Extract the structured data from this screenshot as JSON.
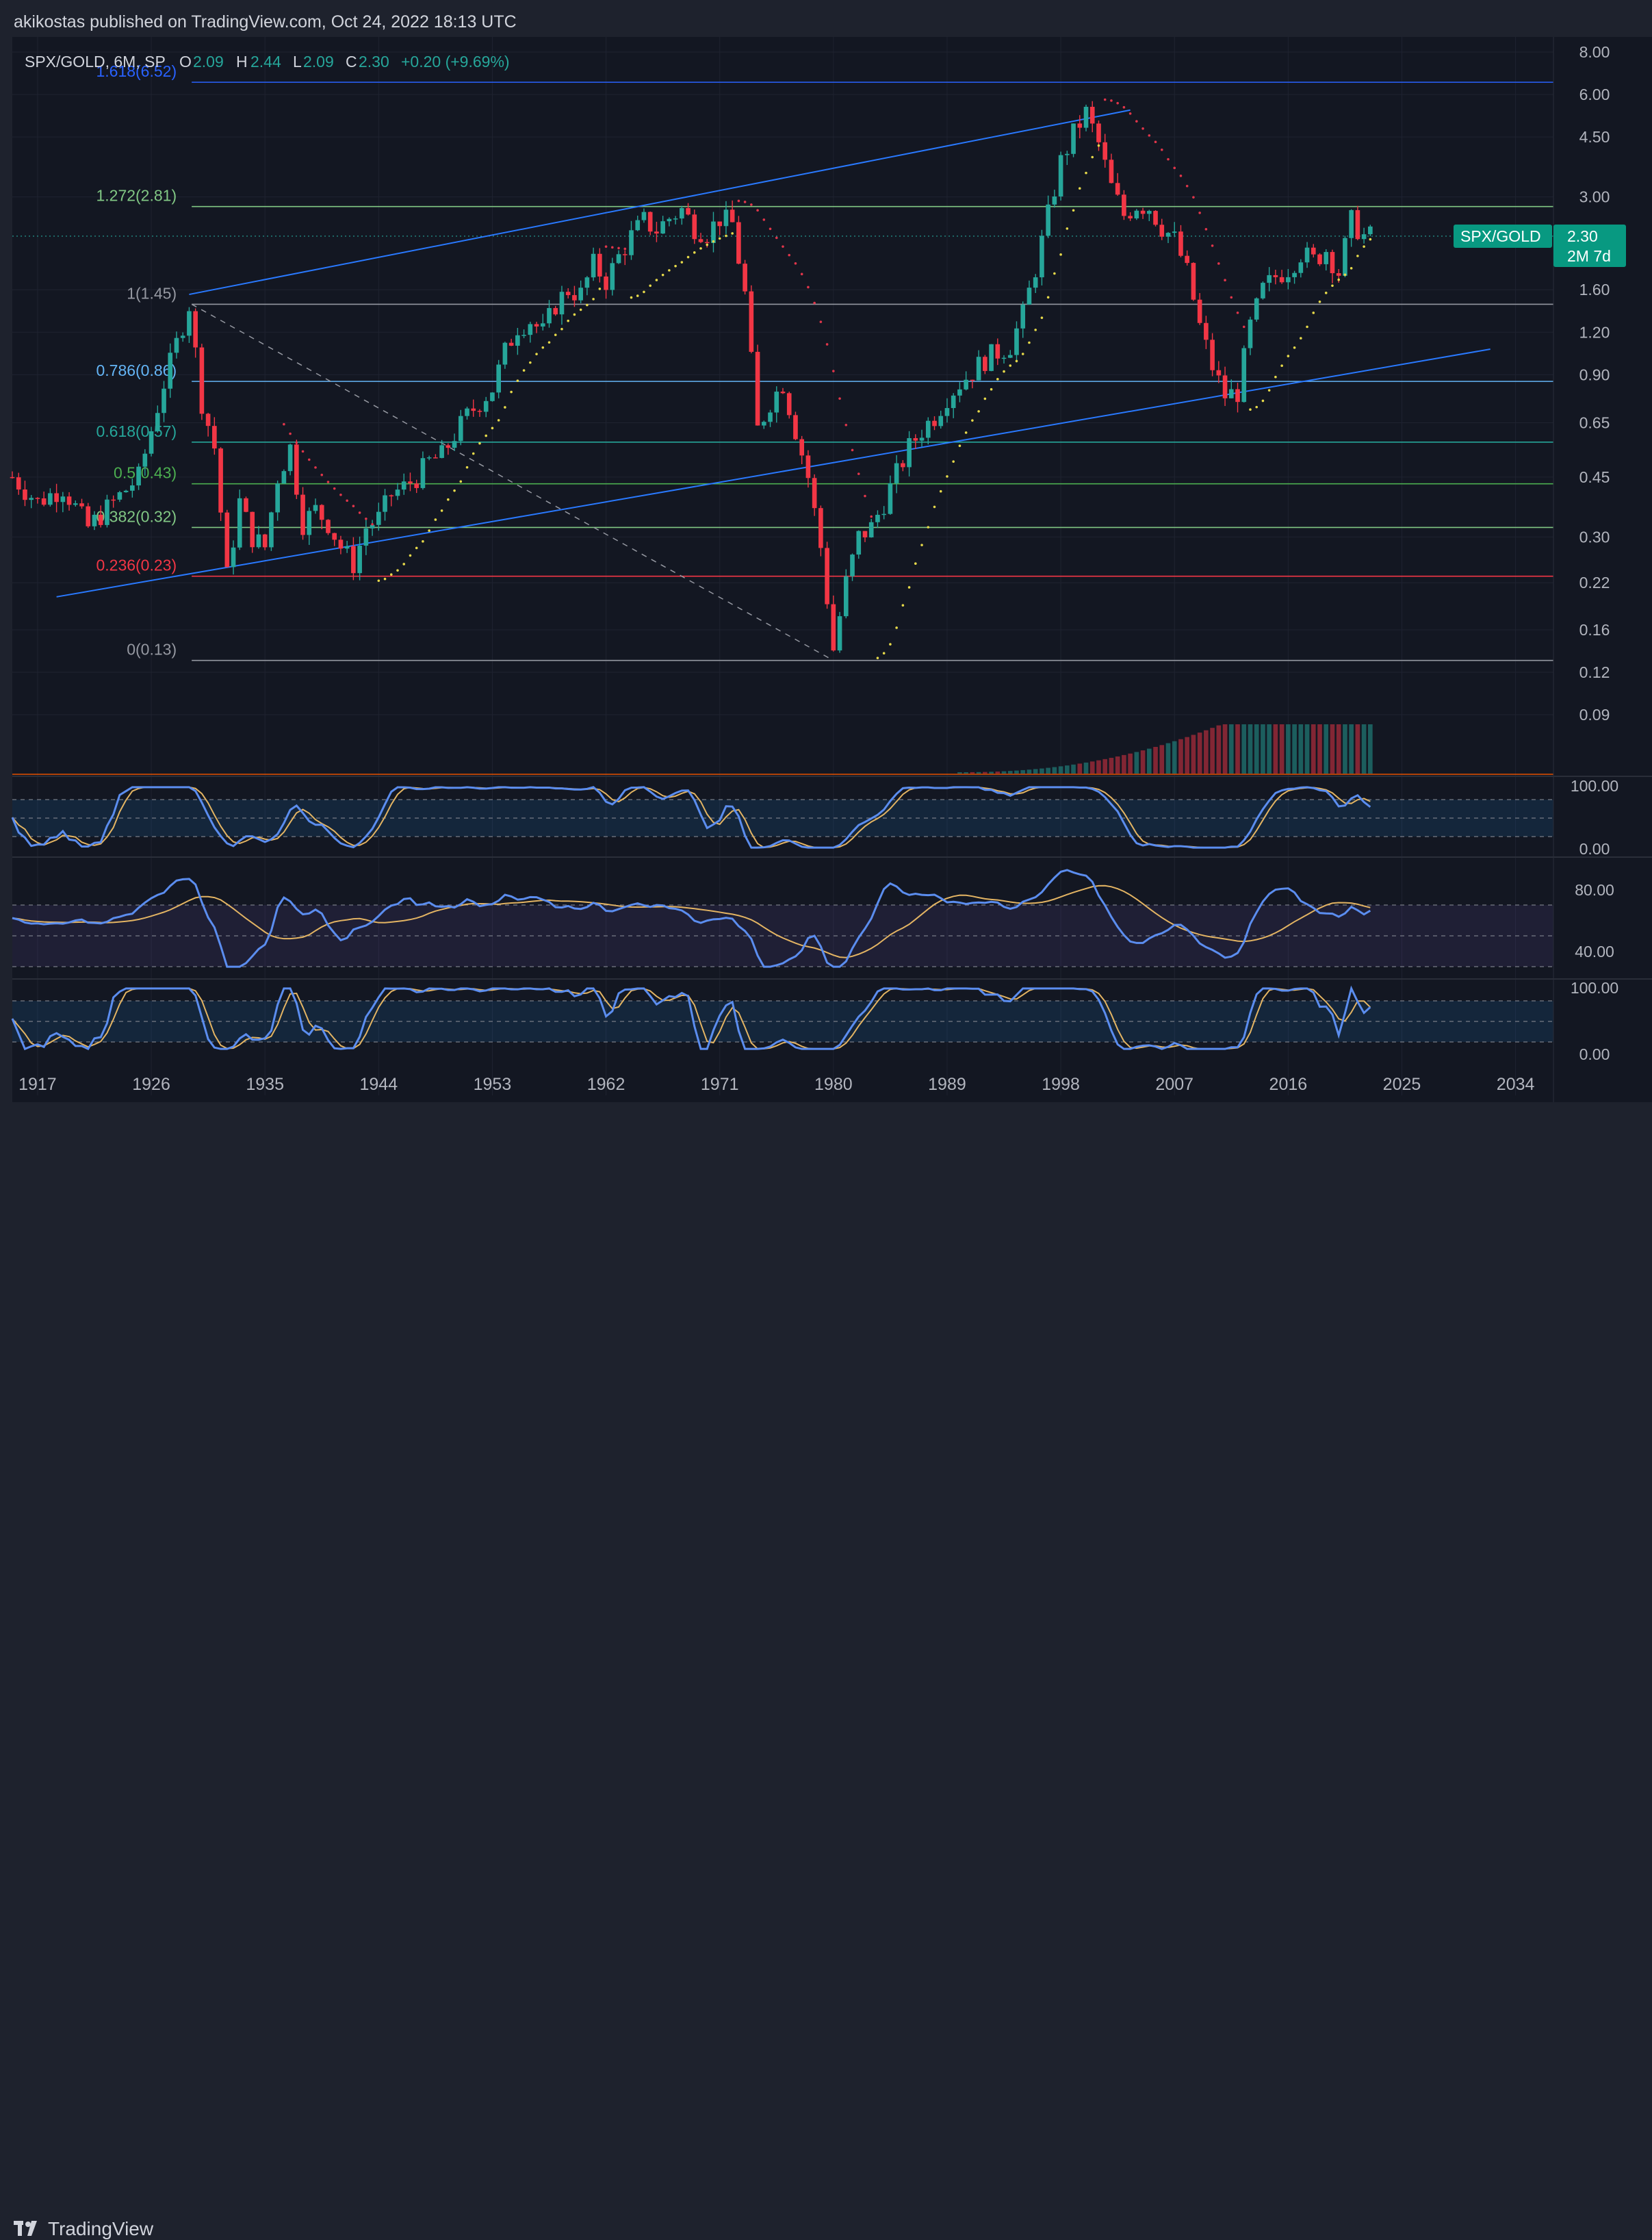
{
  "header": {
    "publisher_text": "akikostas published on TradingView.com, Oct 24, 2022 18:13 UTC"
  },
  "legend": {
    "symbol": "SPX/GOLD, 6M, SP",
    "o_label": "O",
    "o_value": "2.09",
    "h_label": "H",
    "h_value": "2.44",
    "l_label": "L",
    "l_value": "2.09",
    "c_label": "C",
    "c_value": "2.30",
    "change": "+0.20 (+9.69%)"
  },
  "price_tag": {
    "symbol": "SPX/GOLD",
    "value": "2.30",
    "countdown": "2M 7d"
  },
  "footer": {
    "brand": "TradingView"
  },
  "colors": {
    "up": "#26a69a",
    "down": "#f23645",
    "fib_1618": "#2962ff",
    "fib_1272": "#81c784",
    "fib_1": "#9598a1",
    "fib_0786": "#64b5f6",
    "fib_0618": "#26a69a",
    "fib_05": "#4caf50",
    "fib_0382": "#81c784",
    "fib_0236": "#f23645",
    "fib_0": "#9598a1",
    "channel": "#2979ff",
    "sar_up": "#e6d94a",
    "sar_down": "#e0354a",
    "osc_fast": "#5b8def",
    "osc_slow": "#e3b463"
  },
  "chart_data": {
    "type": "candlestick",
    "symbol": "SPX/GOLD",
    "timeframe": "6M",
    "scale": "log",
    "ylim": [
      0.09,
      8.0
    ],
    "xlim": [
      1915,
      2037
    ],
    "price_ticks": [
      "8.00",
      "6.00",
      "4.50",
      "3.00",
      "2.30",
      "1.60",
      "1.20",
      "0.90",
      "0.65",
      "0.45",
      "0.30",
      "0.22",
      "0.16",
      "0.12",
      "0.09"
    ],
    "time_ticks": [
      "1917",
      "1926",
      "1935",
      "1944",
      "1953",
      "1962",
      "1971",
      "1980",
      "1989",
      "1998",
      "2007",
      "2016",
      "2025",
      "2034"
    ],
    "fib_levels": [
      {
        "label": "1.618(6.52)",
        "price": 6.52
      },
      {
        "label": "1.272(2.81)",
        "price": 2.81
      },
      {
        "label": "1(1.45)",
        "price": 1.45
      },
      {
        "label": "0.786(0.86)",
        "price": 0.86
      },
      {
        "label": "0.618(0.57)",
        "price": 0.57
      },
      {
        "label": "0.5(0.43)",
        "price": 0.43
      },
      {
        "label": "0.382(0.32)",
        "price": 0.32
      },
      {
        "label": "0.236(0.23)",
        "price": 0.23
      },
      {
        "label": "0(0.13)",
        "price": 0.13
      }
    ],
    "price_path": [
      [
        1915,
        0.45
      ],
      [
        1917,
        0.38
      ],
      [
        1919,
        0.42
      ],
      [
        1921,
        0.32
      ],
      [
        1923,
        0.38
      ],
      [
        1925,
        0.45
      ],
      [
        1927,
        0.85
      ],
      [
        1929,
        1.45
      ],
      [
        1930,
        0.75
      ],
      [
        1931,
        0.55
      ],
      [
        1932,
        0.23
      ],
      [
        1933,
        0.38
      ],
      [
        1934,
        0.3
      ],
      [
        1935,
        0.28
      ],
      [
        1936,
        0.45
      ],
      [
        1937,
        0.55
      ],
      [
        1938,
        0.33
      ],
      [
        1939,
        0.36
      ],
      [
        1940,
        0.33
      ],
      [
        1941,
        0.28
      ],
      [
        1942,
        0.25
      ],
      [
        1943,
        0.32
      ],
      [
        1944,
        0.34
      ],
      [
        1945,
        0.4
      ],
      [
        1946,
        0.42
      ],
      [
        1947,
        0.45
      ],
      [
        1948,
        0.5
      ],
      [
        1949,
        0.52
      ],
      [
        1950,
        0.6
      ],
      [
        1951,
        0.68
      ],
      [
        1952,
        0.75
      ],
      [
        1953,
        0.82
      ],
      [
        1954,
        1.05
      ],
      [
        1955,
        1.25
      ],
      [
        1956,
        1.3
      ],
      [
        1957,
        1.2
      ],
      [
        1958,
        1.45
      ],
      [
        1959,
        1.6
      ],
      [
        1960,
        1.55
      ],
      [
        1961,
        1.9
      ],
      [
        1962,
        1.7
      ],
      [
        1963,
        2.0
      ],
      [
        1964,
        2.3
      ],
      [
        1965,
        2.55
      ],
      [
        1966,
        2.4
      ],
      [
        1967,
        2.6
      ],
      [
        1968,
        2.75
      ],
      [
        1969,
        2.45
      ],
      [
        1970,
        2.35
      ],
      [
        1971,
        2.6
      ],
      [
        1972,
        2.5
      ],
      [
        1973,
        1.55
      ],
      [
        1974,
        0.62
      ],
      [
        1975,
        0.75
      ],
      [
        1976,
        0.85
      ],
      [
        1977,
        0.62
      ],
      [
        1978,
        0.45
      ],
      [
        1979,
        0.28
      ],
      [
        1980,
        0.14
      ],
      [
        1981,
        0.22
      ],
      [
        1982,
        0.3
      ],
      [
        1983,
        0.32
      ],
      [
        1984,
        0.38
      ],
      [
        1985,
        0.46
      ],
      [
        1986,
        0.55
      ],
      [
        1987,
        0.62
      ],
      [
        1988,
        0.68
      ],
      [
        1989,
        0.78
      ],
      [
        1990,
        0.85
      ],
      [
        1991,
        0.92
      ],
      [
        1992,
        1.0
      ],
      [
        1993,
        1.05
      ],
      [
        1994,
        1.1
      ],
      [
        1995,
        1.35
      ],
      [
        1996,
        1.85
      ],
      [
        1997,
        2.65
      ],
      [
        1998,
        3.8
      ],
      [
        1999,
        4.6
      ],
      [
        2000,
        5.3
      ],
      [
        2001,
        4.3
      ],
      [
        2002,
        3.2
      ],
      [
        2003,
        2.65
      ],
      [
        2004,
        2.85
      ],
      [
        2005,
        2.8
      ],
      [
        2006,
        2.45
      ],
      [
        2007,
        2.25
      ],
      [
        2008,
        1.8
      ],
      [
        2009,
        1.25
      ],
      [
        2010,
        0.95
      ],
      [
        2011,
        0.78
      ],
      [
        2012,
        0.8
      ],
      [
        2013,
        1.25
      ],
      [
        2014,
        1.6
      ],
      [
        2015,
        1.75
      ],
      [
        2016,
        1.85
      ],
      [
        2017,
        2.05
      ],
      [
        2018,
        1.95
      ],
      [
        2019,
        2.1
      ],
      [
        2020,
        1.8
      ],
      [
        2021,
        2.55
      ],
      [
        2022,
        2.3
      ]
    ],
    "parabolic_sar": [],
    "volume_scale_max": 1,
    "osc1_ticks": [
      "100.00",
      "0.00"
    ],
    "osc2_ticks": [
      "80.00",
      "40.00"
    ],
    "osc3_ticks": [
      "100.00",
      "0.00"
    ]
  }
}
